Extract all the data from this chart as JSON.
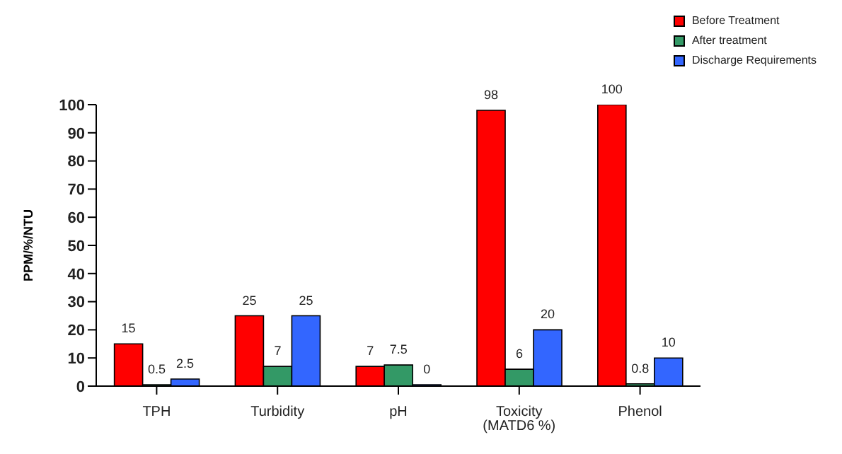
{
  "chart_data": {
    "type": "bar",
    "ylabel": "PPM/%/NTU",
    "categories": [
      "TPH",
      "Turbidity",
      "pH",
      "Toxicity (MATD6 %)",
      "Phenol"
    ],
    "series": [
      {
        "name": "Before Treatment",
        "color": "#ff0000",
        "values": [
          15,
          25,
          7,
          98,
          100
        ]
      },
      {
        "name": "After treatment",
        "color": "#339966",
        "values": [
          0.5,
          7,
          7.5,
          6,
          0.8
        ]
      },
      {
        "name": "Discharge Requirements",
        "color": "#3366ff",
        "values": [
          2.5,
          25,
          0,
          20,
          10
        ]
      }
    ],
    "ylim": [
      0,
      100
    ],
    "yticks": [
      0,
      10,
      20,
      30,
      40,
      50,
      60,
      70,
      80,
      90,
      100
    ],
    "data_labels": true,
    "legend": "top right",
    "grid": false
  }
}
